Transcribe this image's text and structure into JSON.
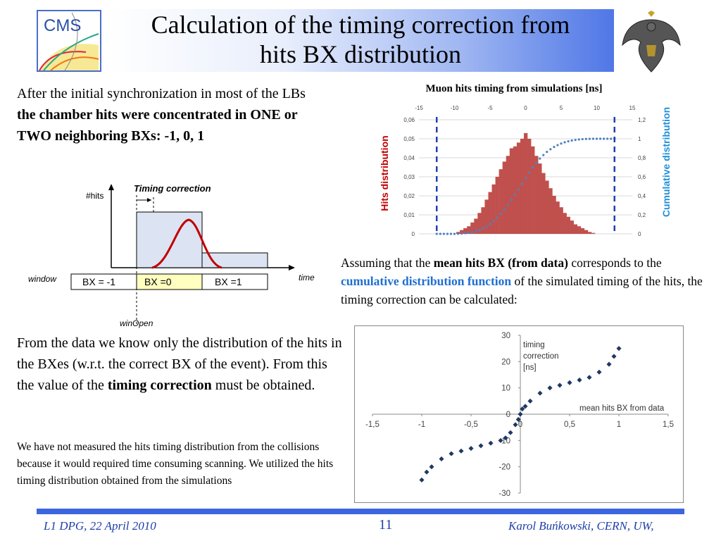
{
  "slide": {
    "title_line1": "Calculation of the timing correction from",
    "title_line2": "hits BX distribution",
    "logo_left_text": "CMS",
    "intro_plain": "After the initial synchronization in most of the LBs ",
    "intro_bold": "the chamber hits were concentrated in ONE or TWO neighboring BXs: -1, 0, 1",
    "from_data_plain": "From the data we know only the distribution of the hits in the BXes (w.r.t. the correct BX of the event). From this the value of the ",
    "from_data_bold": "timing correction",
    "from_data_end": " must be obtained.",
    "note": "We have not measured the hits timing distribution from the collisions because it would required time consuming scanning. We utilized the hits timing distribution obtained from the simulations",
    "assume_1": "Assuming that the ",
    "assume_bold": "mean hits BX (from data)",
    "assume_2": " corresponds to the ",
    "assume_hl": "cumulative distribution function",
    "assume_3": " of the simulated timing of the hits, the timing correction can be calculated:",
    "footer_left": "L1 DPG, 22 April 2010",
    "footer_page": "11",
    "footer_right": "Karol Buńkowski, CERN, UW,"
  },
  "diagram": {
    "timing_correction_label": "Timing correction",
    "hits_axis_label": "#hits",
    "time_label": "time",
    "window_label": "window",
    "winopen_label": "winOpen",
    "bx_labels": [
      "BX = -1",
      "BX =0",
      "BX =1"
    ]
  },
  "colors": {
    "hist": "#c0504d",
    "cumulative": "#4f81bd",
    "window_line": "#1f3fb0",
    "cumulative_label": "#1f8fd8",
    "hits_label": "#c00000",
    "scatter": "#1f3864",
    "bx0_fill": "#ffffc0",
    "bar_fill": "#dce3f2"
  },
  "chart_data": [
    {
      "type": "bar",
      "title": "Muon hits timing from simulations [ns]",
      "ylabel": "Hits distribution",
      "y2label": "Cumulative distribution",
      "xlim": [
        -15,
        15
      ],
      "xticks": [
        -15,
        -10,
        -5,
        0,
        5,
        10,
        15
      ],
      "ylim": [
        0,
        0.06
      ],
      "yticks": [
        "0",
        "0,01",
        "0,02",
        "0,03",
        "0,04",
        "0,05",
        "0,06"
      ],
      "y2lim": [
        0,
        1.2
      ],
      "y2ticks": [
        "0",
        "0,2",
        "0,4",
        "0,6",
        "0,8",
        "1",
        "1,2"
      ],
      "window_lines_x": [
        -12.5,
        12.5
      ],
      "hist_x": [
        -9.5,
        -9,
        -8.5,
        -8,
        -7.5,
        -7,
        -6.5,
        -6,
        -5.5,
        -5,
        -4.5,
        -4,
        -3.5,
        -3,
        -2.5,
        -2,
        -1.5,
        -1,
        -0.5,
        0,
        0.5,
        1,
        1.5,
        2,
        2.5,
        3,
        3.5,
        4,
        4.5,
        5,
        5.5,
        6,
        6.5,
        7,
        7.5,
        8,
        8.5,
        9,
        9.5
      ],
      "hist_y": [
        0.001,
        0.002,
        0.003,
        0.004,
        0.006,
        0.008,
        0.011,
        0.014,
        0.018,
        0.022,
        0.026,
        0.03,
        0.034,
        0.038,
        0.041,
        0.045,
        0.046,
        0.048,
        0.05,
        0.053,
        0.05,
        0.046,
        0.041,
        0.037,
        0.032,
        0.028,
        0.024,
        0.02,
        0.017,
        0.014,
        0.011,
        0.009,
        0.007,
        0.005,
        0.004,
        0.003,
        0.002,
        0.001,
        0.0005
      ],
      "cumulative": "running sum of hits distribution, 0 to 1"
    },
    {
      "type": "scatter",
      "title": "timing correction [ns]",
      "xlabel": "mean hits BX from data",
      "xlim": [
        -1.5,
        1.5
      ],
      "xticks": [
        "-1,5",
        "-1",
        "-0,5",
        "0",
        "0,5",
        "1",
        "1,5"
      ],
      "ylim": [
        -30,
        30
      ],
      "yticks": [
        "30",
        "20",
        "10",
        "0",
        "-10",
        "-20",
        "-30"
      ],
      "x": [
        -1.0,
        -0.95,
        -0.9,
        -0.8,
        -0.7,
        -0.6,
        -0.5,
        -0.4,
        -0.3,
        -0.2,
        -0.15,
        -0.1,
        -0.05,
        -0.02,
        0,
        0.02,
        0.05,
        0.1,
        0.2,
        0.3,
        0.4,
        0.5,
        0.6,
        0.7,
        0.8,
        0.9,
        0.95,
        1.0
      ],
      "y": [
        -25,
        -22,
        -20,
        -17,
        -15,
        -14,
        -13,
        -12,
        -11,
        -10,
        -9,
        -7,
        -4,
        -2,
        0,
        2,
        3,
        5,
        8,
        10,
        11,
        12,
        13,
        14,
        16,
        19,
        22,
        25
      ]
    }
  ]
}
